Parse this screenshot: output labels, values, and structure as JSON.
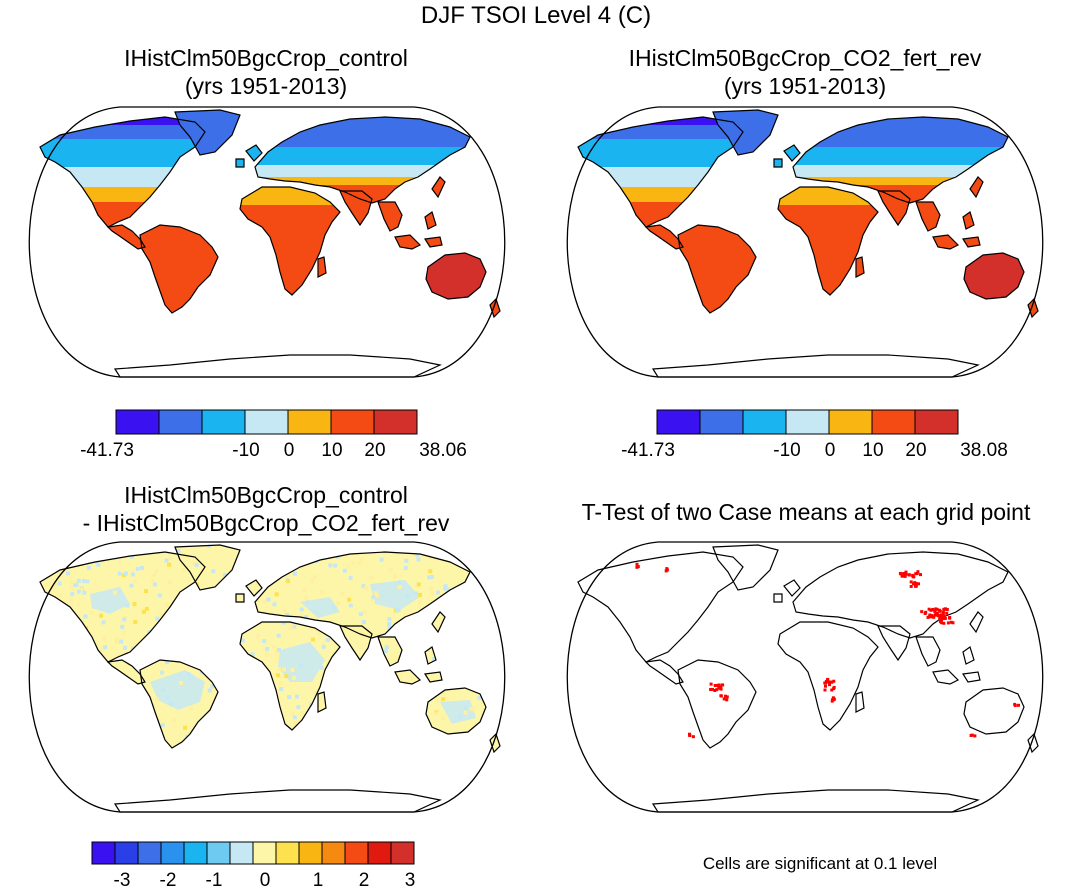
{
  "title": "DJF TSOI Level 4 (C)",
  "panels": {
    "top_left": {
      "title_line1": "IHistClm50BgcCrop_control",
      "title_line2": "(yrs 1951-2013)",
      "colorbar": {
        "colors": [
          "#3a12f2",
          "#3d6fe8",
          "#1ab4f0",
          "#c6e8f4",
          "#f9b612",
          "#f44a14",
          "#d3302c"
        ],
        "labels": [
          "-41.73",
          "-10",
          "0",
          "10",
          "20",
          "38.06"
        ]
      }
    },
    "top_right": {
      "title_line1": "IHistClm50BgcCrop_CO2_fert_rev",
      "title_line2": "(yrs 1951-2013)",
      "colorbar": {
        "colors": [
          "#3a12f2",
          "#3d6fe8",
          "#1ab4f0",
          "#c6e8f4",
          "#f9b612",
          "#f44a14",
          "#d3302c"
        ],
        "labels": [
          "-41.73",
          "-10",
          "0",
          "10",
          "20",
          "38.08"
        ]
      }
    },
    "bottom_left": {
      "title_line1": "IHistClm50BgcCrop_control",
      "title_line2": "- IHistClm50BgcCrop_CO2_fert_rev",
      "colorbar": {
        "colors": [
          "#3a12f2",
          "#2a3fe8",
          "#3d6fe8",
          "#2a92ee",
          "#1ab4f0",
          "#6fcaf2",
          "#c6e8f4",
          "#fdf6a8",
          "#fde14e",
          "#f9b612",
          "#f68a10",
          "#f44a14",
          "#e01a10",
          "#d3302c"
        ],
        "labels": [
          "-3",
          "-2",
          "-1",
          "0",
          "1",
          "2",
          "3"
        ]
      }
    },
    "bottom_right": {
      "title": "T-Test of two Case means at each grid point",
      "note": "Cells are significant at 0.1 level",
      "significant_color": "#ff0000"
    }
  }
}
